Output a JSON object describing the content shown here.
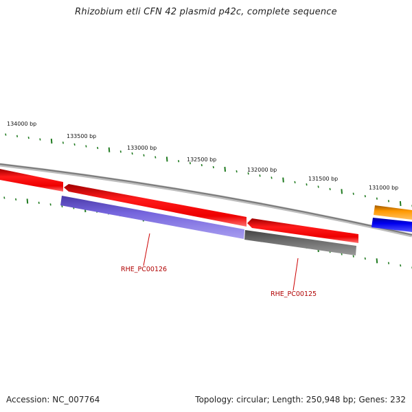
{
  "title": "Rhizobium etli CFN 42 plasmid p42c, complete sequence",
  "footer": {
    "accession": "Accession: NC_007764",
    "summary": "Topology: circular; Length: 250,948 bp; Genes: 232"
  },
  "scale_labels": [
    "134000 bp",
    "133500 bp",
    "133000 bp",
    "132500 bp",
    "132000 bp",
    "131500 bp",
    "131000 bp"
  ],
  "gene_labels": [
    "RHE_PC00126",
    "RHE_PC00125"
  ],
  "colors": {
    "backbone": "#8a8a8a",
    "tick": "#1f7a1f",
    "label": "#b00000",
    "red": "#ee0000",
    "purple": "#6f5fd6",
    "gray": "#666666",
    "orange": "#ff9900",
    "blue": "#0000ee"
  }
}
